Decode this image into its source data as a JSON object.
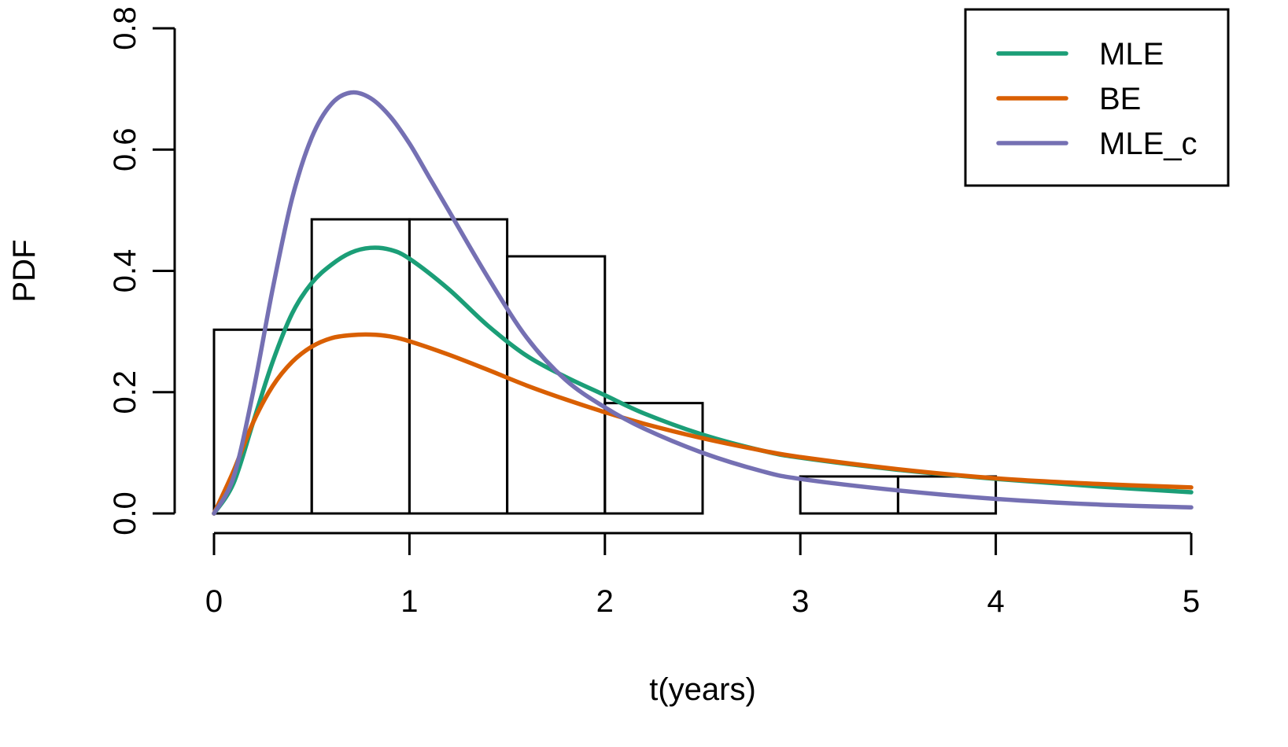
{
  "chart_data": {
    "type": "histogram-with-density-curves",
    "xlabel": "t(years)",
    "ylabel": "PDF",
    "xlim": [
      0,
      5
    ],
    "ylim": [
      0,
      0.8
    ],
    "x_ticks": [
      "0",
      "1",
      "2",
      "3",
      "4",
      "5"
    ],
    "y_ticks": [
      "0.0",
      "0.2",
      "0.4",
      "0.6",
      "0.8"
    ],
    "grid": false,
    "legend_position": "top-right",
    "histogram": {
      "bin_edges": [
        0,
        0.5,
        1.0,
        1.5,
        2.0,
        2.5,
        3.0,
        3.5,
        4.0
      ],
      "densities": [
        0.303,
        0.485,
        0.485,
        0.424,
        0.182,
        0.0,
        0.061,
        0.061
      ]
    },
    "series": [
      {
        "name": "MLE",
        "color": "#1b9e77",
        "x": [
          0,
          0.1,
          0.2,
          0.3,
          0.4,
          0.5,
          0.6,
          0.7,
          0.8,
          0.9,
          1.0,
          1.2,
          1.4,
          1.6,
          1.8,
          2.0,
          2.2,
          2.5,
          2.8,
          3.0,
          3.5,
          4.0,
          4.5,
          5.0
        ],
        "y": [
          0,
          0.05,
          0.15,
          0.25,
          0.33,
          0.38,
          0.41,
          0.43,
          0.438,
          0.435,
          0.42,
          0.37,
          0.31,
          0.26,
          0.225,
          0.195,
          0.165,
          0.13,
          0.104,
          0.092,
          0.072,
          0.057,
          0.045,
          0.035
        ]
      },
      {
        "name": "BE",
        "color": "#d95f02",
        "x": [
          0,
          0.1,
          0.2,
          0.3,
          0.4,
          0.5,
          0.6,
          0.7,
          0.8,
          0.9,
          1.0,
          1.2,
          1.4,
          1.6,
          1.8,
          2.0,
          2.2,
          2.5,
          2.8,
          3.0,
          3.5,
          4.0,
          4.5,
          5.0
        ],
        "y": [
          0,
          0.07,
          0.15,
          0.21,
          0.25,
          0.275,
          0.289,
          0.294,
          0.295,
          0.292,
          0.284,
          0.262,
          0.237,
          0.211,
          0.188,
          0.167,
          0.148,
          0.124,
          0.104,
          0.093,
          0.073,
          0.058,
          0.049,
          0.043
        ]
      },
      {
        "name": "MLE_c",
        "color": "#7570b3",
        "x": [
          0,
          0.1,
          0.2,
          0.3,
          0.4,
          0.5,
          0.6,
          0.7,
          0.8,
          0.9,
          1.0,
          1.1,
          1.2,
          1.4,
          1.6,
          1.8,
          2.0,
          2.2,
          2.5,
          2.8,
          3.0,
          3.5,
          4.0,
          4.5,
          5.0
        ],
        "y": [
          0,
          0.06,
          0.2,
          0.37,
          0.52,
          0.62,
          0.675,
          0.694,
          0.685,
          0.655,
          0.61,
          0.555,
          0.5,
          0.39,
          0.29,
          0.22,
          0.175,
          0.14,
          0.1,
          0.07,
          0.057,
          0.038,
          0.024,
          0.015,
          0.01
        ]
      }
    ]
  }
}
